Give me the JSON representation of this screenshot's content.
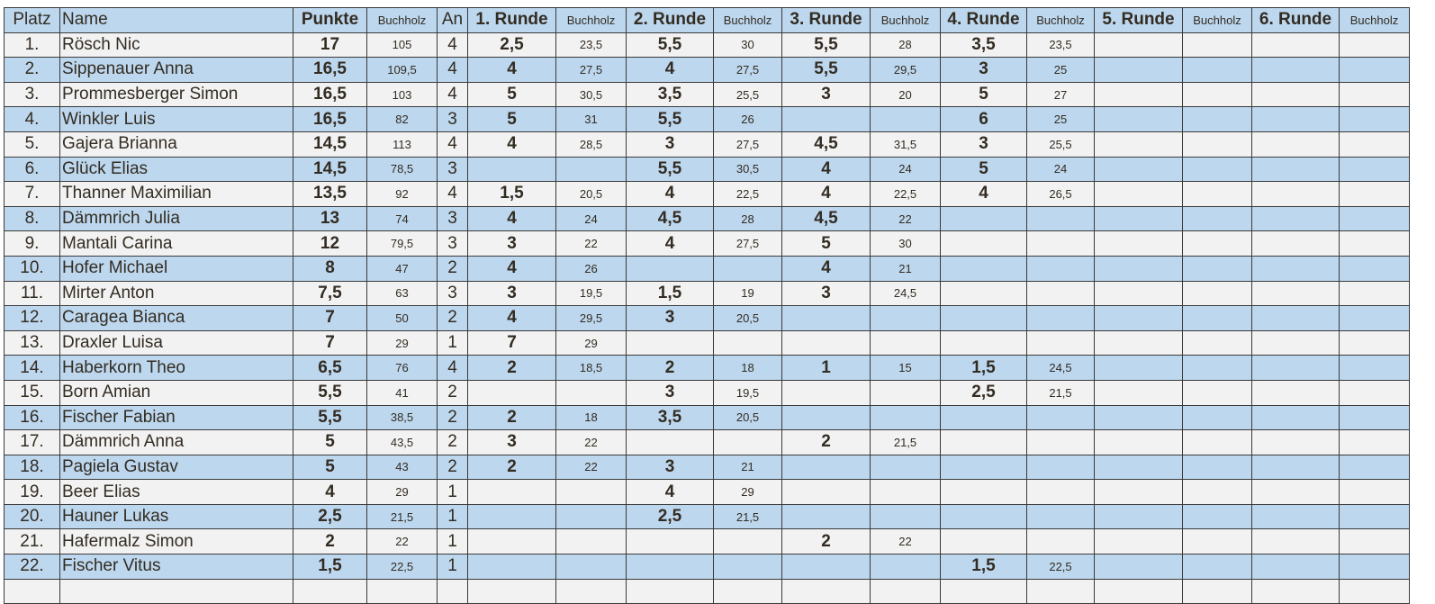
{
  "colors": {
    "header_bg": "#bdd7ee",
    "row_alt_bg": "#bdd7ee",
    "row_bg": "#f2f2f2",
    "text": "#332c22"
  },
  "headers": [
    "Platz",
    "Name",
    "Punkte",
    "Buchholz",
    "An",
    "1. Runde",
    "Buchholz",
    "2. Runde",
    "Buchholz",
    "3. Runde",
    "Buchholz",
    "4. Runde",
    "Buchholz",
    "5. Runde",
    "Buchholz",
    "6. Runde",
    "Buchholz"
  ],
  "rows": [
    [
      "1.",
      "Rösch Nic",
      "17",
      "105",
      "4",
      "2,5",
      "23,5",
      "5,5",
      "30",
      "5,5",
      "28",
      "3,5",
      "23,5",
      "",
      "",
      "",
      ""
    ],
    [
      "2.",
      "Sippenauer Anna",
      "16,5",
      "109,5",
      "4",
      "4",
      "27,5",
      "4",
      "27,5",
      "5,5",
      "29,5",
      "3",
      "25",
      "",
      "",
      "",
      ""
    ],
    [
      "3.",
      "Prommesberger Simon",
      "16,5",
      "103",
      "4",
      "5",
      "30,5",
      "3,5",
      "25,5",
      "3",
      "20",
      "5",
      "27",
      "",
      "",
      "",
      ""
    ],
    [
      "4.",
      "Winkler Luis",
      "16,5",
      "82",
      "3",
      "5",
      "31",
      "5,5",
      "26",
      "",
      "",
      "6",
      "25",
      "",
      "",
      "",
      ""
    ],
    [
      "5.",
      "Gajera Brianna",
      "14,5",
      "113",
      "4",
      "4",
      "28,5",
      "3",
      "27,5",
      "4,5",
      "31,5",
      "3",
      "25,5",
      "",
      "",
      "",
      ""
    ],
    [
      "6.",
      "Glück Elias",
      "14,5",
      "78,5",
      "3",
      "",
      "",
      "5,5",
      "30,5",
      "4",
      "24",
      "5",
      "24",
      "",
      "",
      "",
      ""
    ],
    [
      "7.",
      "Thanner Maximilian",
      "13,5",
      "92",
      "4",
      "1,5",
      "20,5",
      "4",
      "22,5",
      "4",
      "22,5",
      "4",
      "26,5",
      "",
      "",
      "",
      ""
    ],
    [
      "8.",
      "Dämmrich Julia",
      "13",
      "74",
      "3",
      "4",
      "24",
      "4,5",
      "28",
      "4,5",
      "22",
      "",
      "",
      "",
      "",
      "",
      ""
    ],
    [
      "9.",
      "Mantali Carina",
      "12",
      "79,5",
      "3",
      "3",
      "22",
      "4",
      "27,5",
      "5",
      "30",
      "",
      "",
      "",
      "",
      "",
      ""
    ],
    [
      "10.",
      "Hofer Michael",
      "8",
      "47",
      "2",
      "4",
      "26",
      "",
      "",
      "4",
      "21",
      "",
      "",
      "",
      "",
      "",
      ""
    ],
    [
      "11.",
      "Mirter Anton",
      "7,5",
      "63",
      "3",
      "3",
      "19,5",
      "1,5",
      "19",
      "3",
      "24,5",
      "",
      "",
      "",
      "",
      "",
      ""
    ],
    [
      "12.",
      "Caragea Bianca",
      "7",
      "50",
      "2",
      "4",
      "29,5",
      "3",
      "20,5",
      "",
      "",
      "",
      "",
      "",
      "",
      "",
      ""
    ],
    [
      "13.",
      "Draxler Luisa",
      "7",
      "29",
      "1",
      "7",
      "29",
      "",
      "",
      "",
      "",
      "",
      "",
      "",
      "",
      "",
      ""
    ],
    [
      "14.",
      "Haberkorn Theo",
      "6,5",
      "76",
      "4",
      "2",
      "18,5",
      "2",
      "18",
      "1",
      "15",
      "1,5",
      "24,5",
      "",
      "",
      "",
      ""
    ],
    [
      "15.",
      "Born Amian",
      "5,5",
      "41",
      "2",
      "",
      "",
      "3",
      "19,5",
      "",
      "",
      "2,5",
      "21,5",
      "",
      "",
      "",
      ""
    ],
    [
      "16.",
      "Fischer Fabian",
      "5,5",
      "38,5",
      "2",
      "2",
      "18",
      "3,5",
      "20,5",
      "",
      "",
      "",
      "",
      "",
      "",
      "",
      ""
    ],
    [
      "17.",
      "Dämmrich Anna",
      "5",
      "43,5",
      "2",
      "3",
      "22",
      "",
      "",
      "2",
      "21,5",
      "",
      "",
      "",
      "",
      "",
      ""
    ],
    [
      "18.",
      "Pagiela Gustav",
      "5",
      "43",
      "2",
      "2",
      "22",
      "3",
      "21",
      "",
      "",
      "",
      "",
      "",
      "",
      "",
      ""
    ],
    [
      "19.",
      "Beer Elias",
      "4",
      "29",
      "1",
      "",
      "",
      "4",
      "29",
      "",
      "",
      "",
      "",
      "",
      "",
      "",
      ""
    ],
    [
      "20.",
      "Hauner Lukas",
      "2,5",
      "21,5",
      "1",
      "",
      "",
      "2,5",
      "21,5",
      "",
      "",
      "",
      "",
      "",
      "",
      "",
      ""
    ],
    [
      "21.",
      "Hafermalz Simon",
      "2",
      "22",
      "1",
      "",
      "",
      "",
      "",
      "2",
      "22",
      "",
      "",
      "",
      "",
      "",
      ""
    ],
    [
      "22.",
      "Fischer Vitus",
      "1,5",
      "22,5",
      "1",
      "",
      "",
      "",
      "",
      "",
      "",
      "1,5",
      "22,5",
      "",
      "",
      "",
      ""
    ]
  ]
}
